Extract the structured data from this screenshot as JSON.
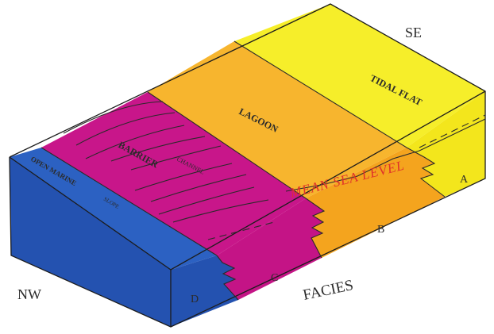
{
  "compass": {
    "se": "SE",
    "nw": "NW"
  },
  "zones": {
    "tidal_flat": "TIDAL FLAT",
    "lagoon": "LAGOON",
    "barrier": "BARRIER",
    "channel": "CHANNEL",
    "open_marine": "OPEN MARINE",
    "slope": "SLOPE"
  },
  "mean_sea_level": "MEAN SEA LEVEL",
  "facies": {
    "title": "FACIES",
    "a": "A",
    "b": "B",
    "c": "C",
    "d": "D"
  },
  "colors": {
    "tidal_flat": "#f6ee2a",
    "tidal_flat_side": "#f3e61c",
    "lagoon": "#f7b52e",
    "lagoon_side": "#f4a41e",
    "barrier": "#c8168a",
    "barrier_side": "#c41486",
    "open_marine": "#2c61c2",
    "open_marine_side": "#2452b0",
    "sea_level_text": "#e0322a"
  }
}
